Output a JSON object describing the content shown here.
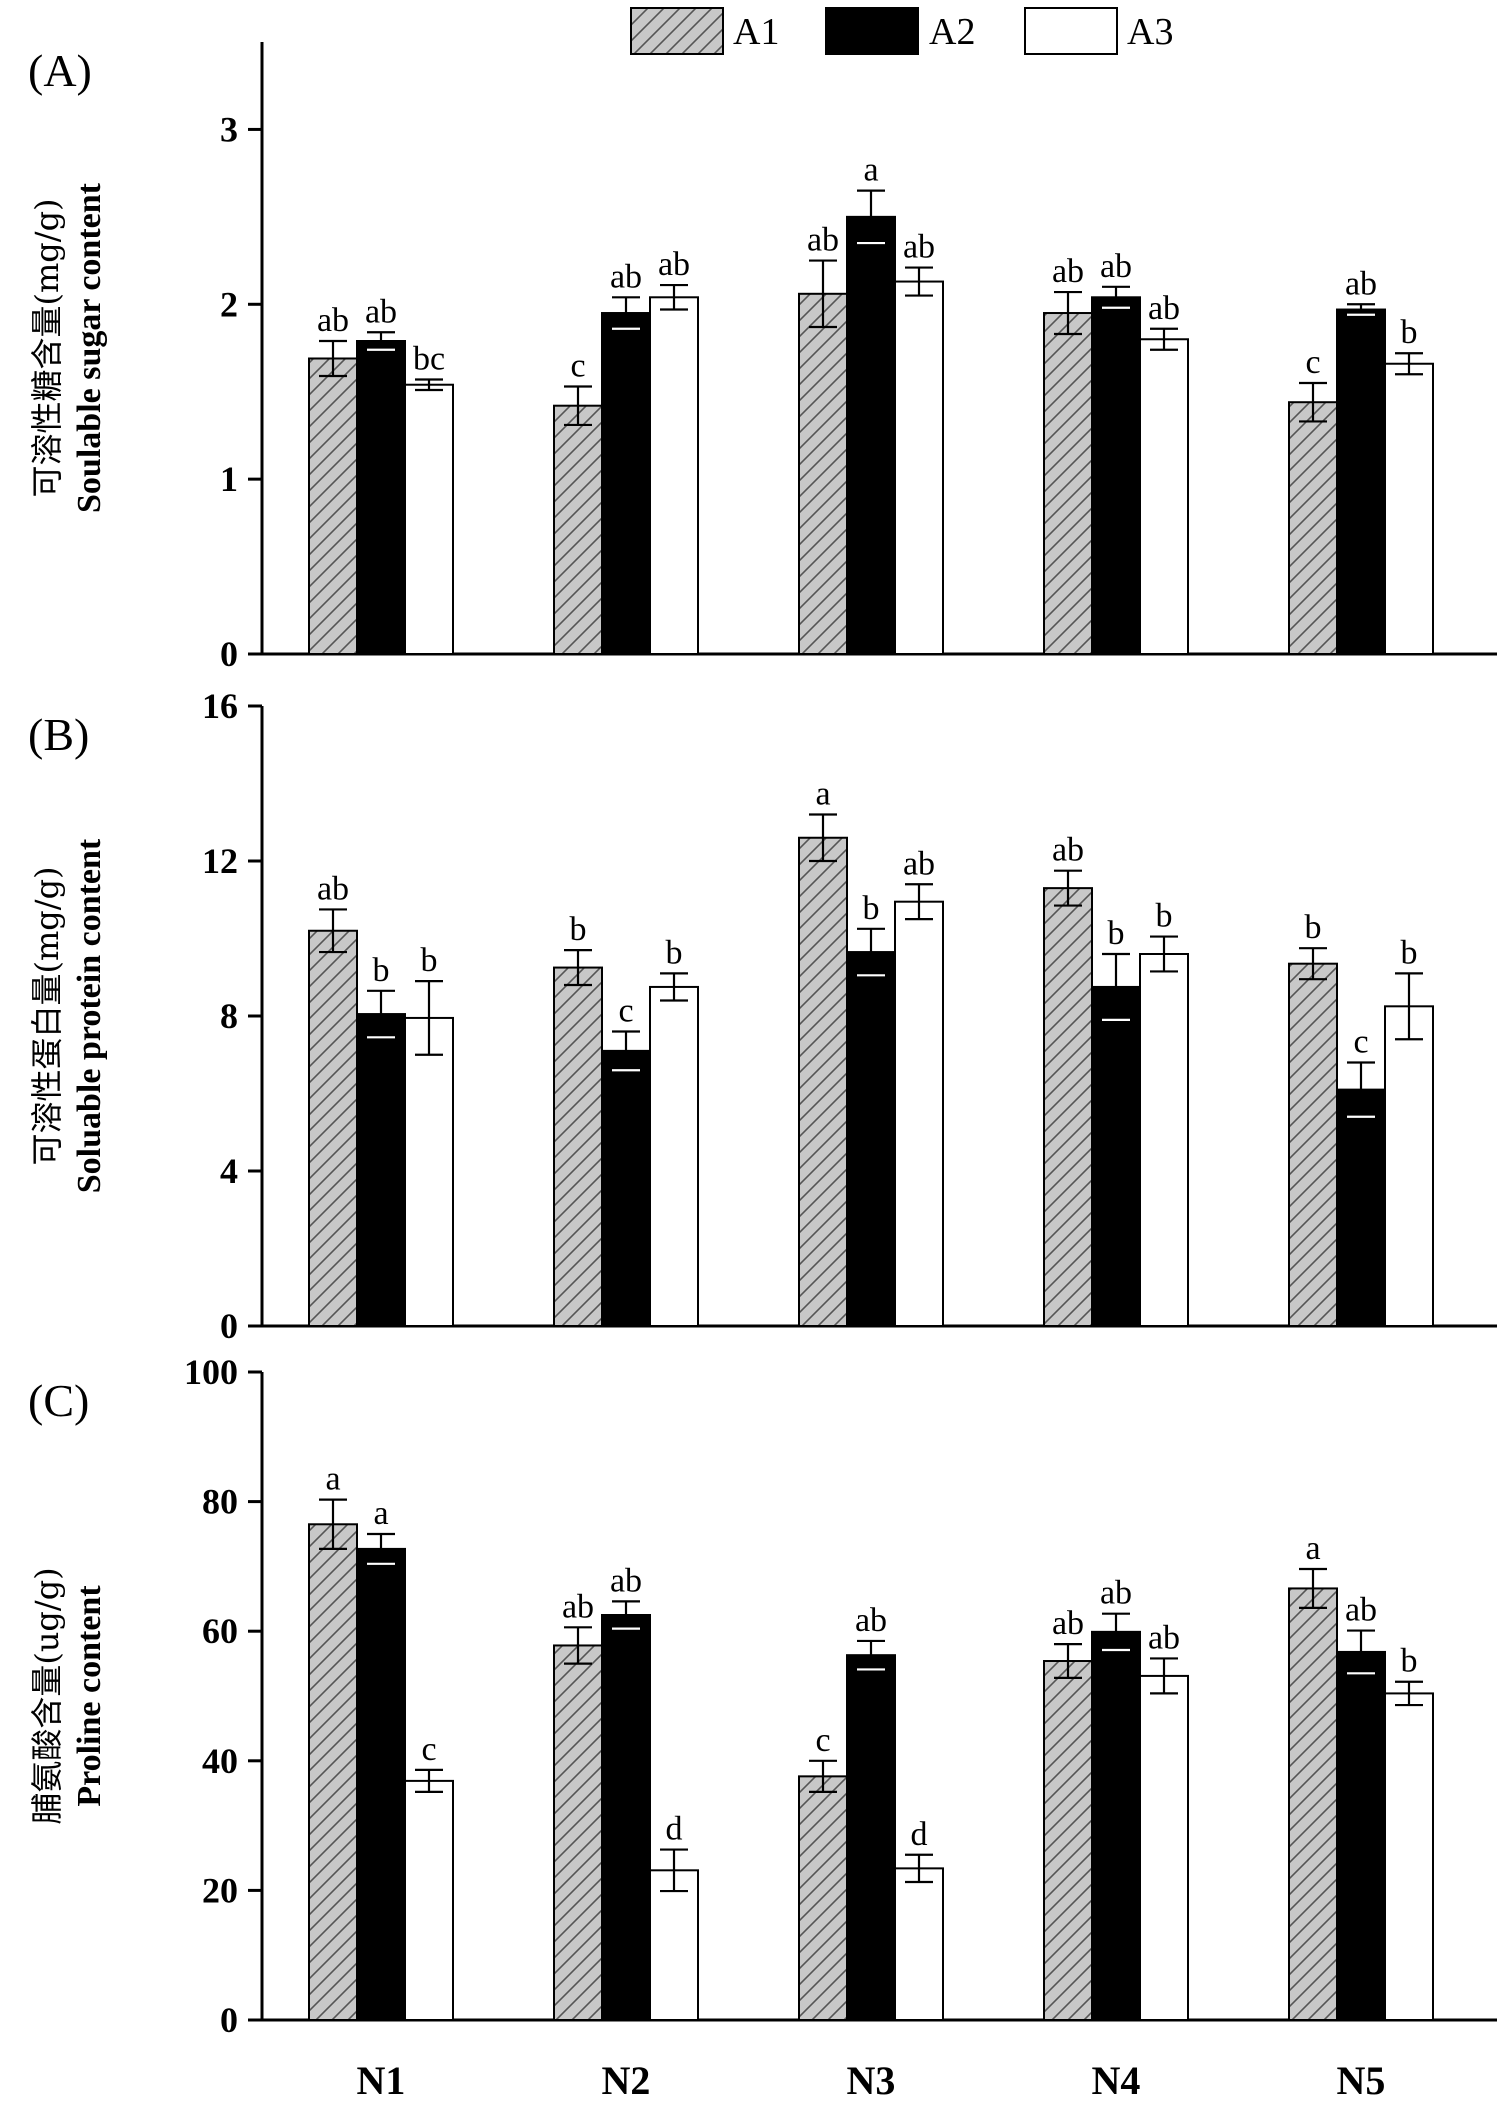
{
  "legend": [
    {
      "name": "A1",
      "style": "hatched",
      "color": "#c8c8c8"
    },
    {
      "name": "A2",
      "style": "solid",
      "color": "#000000"
    },
    {
      "name": "A3",
      "style": "open",
      "color": "#ffffff"
    }
  ],
  "chart_data": [
    {
      "type": "bar",
      "panel_label": "(A)",
      "ylabel_cn": "可溶性糖含量(mg/g)",
      "ylabel_en": "Soulable sugar content",
      "ylim": [
        0,
        3.5
      ],
      "yticks": [
        0,
        1,
        2,
        3
      ],
      "categories": [
        "N1",
        "N2",
        "N3",
        "N4",
        "N5"
      ],
      "series": [
        {
          "name": "A1",
          "values": [
            1.69,
            1.42,
            2.06,
            1.95,
            1.44
          ],
          "errors": [
            0.1,
            0.11,
            0.19,
            0.12,
            0.11
          ],
          "letters": [
            "ab",
            "c",
            "ab",
            "ab",
            "c"
          ]
        },
        {
          "name": "A2",
          "values": [
            1.79,
            1.95,
            2.5,
            2.04,
            1.97
          ],
          "errors": [
            0.05,
            0.09,
            0.15,
            0.06,
            0.03
          ],
          "letters": [
            "ab",
            "ab",
            "a",
            "ab",
            "ab"
          ]
        },
        {
          "name": "A3",
          "values": [
            1.54,
            2.04,
            2.13,
            1.8,
            1.66
          ],
          "errors": [
            0.03,
            0.07,
            0.08,
            0.06,
            0.06
          ],
          "letters": [
            "bc",
            "ab",
            "ab",
            "ab",
            "b"
          ]
        }
      ]
    },
    {
      "type": "bar",
      "panel_label": "(B)",
      "ylabel_cn": "可溶性蛋白量(mg/g)",
      "ylabel_en": "Soluable protein content",
      "ylim": [
        0,
        16
      ],
      "yticks": [
        0,
        4,
        8,
        12,
        16
      ],
      "categories": [
        "N1",
        "N2",
        "N3",
        "N4",
        "N5"
      ],
      "series": [
        {
          "name": "A1",
          "values": [
            10.2,
            9.25,
            12.6,
            11.3,
            9.35
          ],
          "errors": [
            0.55,
            0.45,
            0.6,
            0.45,
            0.4
          ],
          "letters": [
            "ab",
            "b",
            "a",
            "ab",
            "b"
          ]
        },
        {
          "name": "A2",
          "values": [
            8.05,
            7.1,
            9.65,
            8.75,
            6.1
          ],
          "errors": [
            0.6,
            0.5,
            0.6,
            0.85,
            0.7
          ],
          "letters": [
            "b",
            "c",
            "b",
            "b",
            "c"
          ]
        },
        {
          "name": "A3",
          "values": [
            7.95,
            8.75,
            10.95,
            9.6,
            8.25
          ],
          "errors": [
            0.95,
            0.35,
            0.45,
            0.45,
            0.85
          ],
          "letters": [
            "b",
            "b",
            "ab",
            "b",
            "b"
          ]
        }
      ]
    },
    {
      "type": "bar",
      "panel_label": "(C)",
      "ylabel_cn": "脯氨酸含量(ug/g)",
      "ylabel_en": "Proline content",
      "ylim": [
        0,
        100
      ],
      "yticks": [
        0,
        20,
        40,
        60,
        80,
        100
      ],
      "categories": [
        "N1",
        "N2",
        "N3",
        "N4",
        "N5"
      ],
      "series": [
        {
          "name": "A1",
          "values": [
            76.5,
            57.8,
            37.6,
            55.4,
            66.6
          ],
          "errors": [
            3.8,
            2.8,
            2.4,
            2.6,
            3.0
          ],
          "letters": [
            "a",
            "ab",
            "c",
            "ab",
            "a"
          ]
        },
        {
          "name": "A2",
          "values": [
            72.7,
            62.5,
            56.3,
            59.9,
            56.8
          ],
          "errors": [
            2.3,
            2.1,
            2.2,
            2.8,
            3.3
          ],
          "letters": [
            "a",
            "ab",
            "ab",
            "ab",
            "ab"
          ]
        },
        {
          "name": "A3",
          "values": [
            36.9,
            23.1,
            23.4,
            53.1,
            50.4
          ],
          "errors": [
            1.7,
            3.2,
            2.1,
            2.7,
            1.8
          ],
          "letters": [
            "c",
            "d",
            "d",
            "ab",
            "b"
          ]
        }
      ]
    }
  ]
}
